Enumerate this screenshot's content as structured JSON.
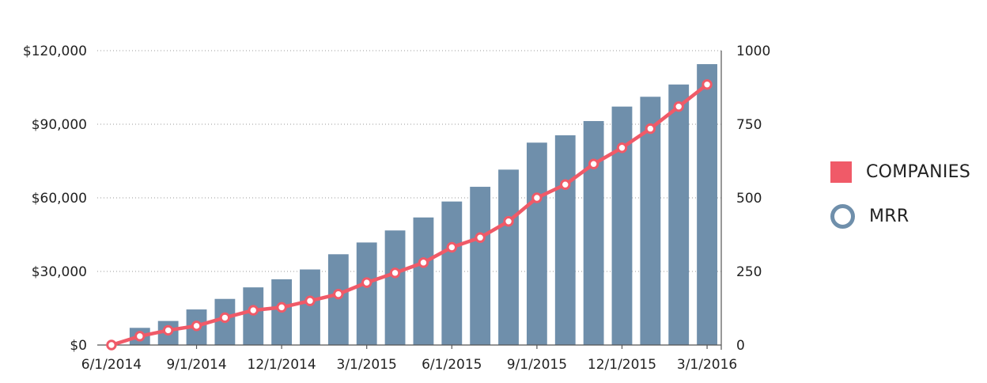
{
  "chart_data": {
    "type": "bar",
    "x": [
      "6/1/2014",
      "7/1/2014",
      "8/1/2014",
      "9/1/2014",
      "10/1/2014",
      "11/1/2014",
      "12/1/2014",
      "1/1/2015",
      "2/1/2015",
      "3/1/2015",
      "4/1/2015",
      "5/1/2015",
      "6/1/2015",
      "7/1/2015",
      "8/1/2015",
      "9/1/2015",
      "10/1/2015",
      "11/1/2015",
      "12/1/2015",
      "1/1/2016",
      "2/1/2016",
      "3/1/2016"
    ],
    "x_tick_labels": [
      "6/1/2014",
      "9/1/2014",
      "12/1/2014",
      "3/1/2015",
      "6/1/2015",
      "9/1/2015",
      "12/1/2015",
      "3/1/2016"
    ],
    "series": [
      {
        "name": "MRR",
        "type": "bar",
        "axis": "left",
        "color": "#6f8fab",
        "values": [
          0,
          7000,
          9800,
          14500,
          18800,
          23500,
          26800,
          30800,
          37000,
          41800,
          46700,
          52000,
          58500,
          64500,
          71500,
          82500,
          85500,
          91300,
          97200,
          101200,
          106200,
          114500
        ]
      },
      {
        "name": "COMPANIES",
        "type": "line",
        "axis": "right",
        "color": "#f05a68",
        "values": [
          0,
          30,
          50,
          65,
          93,
          118,
          128,
          150,
          173,
          212,
          245,
          280,
          332,
          365,
          420,
          500,
          545,
          615,
          670,
          735,
          810,
          885
        ]
      }
    ],
    "y_left": {
      "range": [
        0,
        120000
      ],
      "ticks": [
        0,
        30000,
        60000,
        90000,
        120000
      ],
      "tick_labels": [
        "$0",
        "$30,000",
        "$60,000",
        "$90,000",
        "$120,000"
      ]
    },
    "y_right": {
      "range": [
        0,
        1000
      ],
      "ticks": [
        0,
        250,
        500,
        750,
        1000
      ],
      "tick_labels": [
        "0",
        "250",
        "500",
        "750",
        "1000"
      ]
    },
    "grid": true,
    "legend": {
      "placement": "right",
      "entries": [
        {
          "label": "COMPANIES",
          "shape": "square",
          "color": "#f05a68"
        },
        {
          "label": "MRR",
          "shape": "ring",
          "color": "#6f8fab"
        }
      ]
    }
  }
}
